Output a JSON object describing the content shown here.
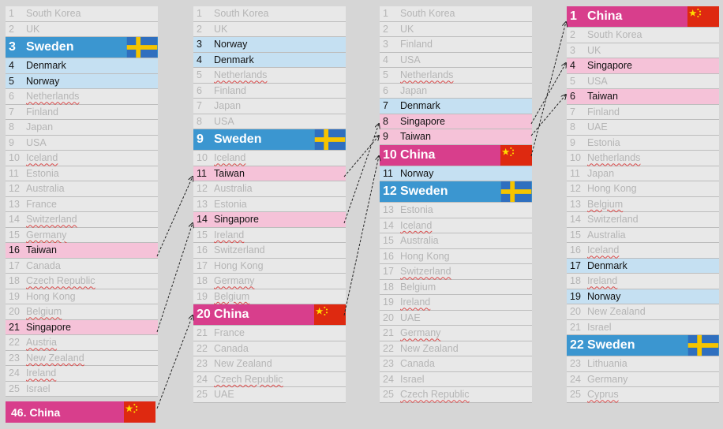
{
  "columns": [
    {
      "rows": [
        {
          "rank": "1",
          "name": "South Korea"
        },
        {
          "rank": "2",
          "name": "UK"
        },
        {
          "rank": "3",
          "name": "Sweden",
          "style": "sweden"
        },
        {
          "rank": "4",
          "name": "Denmark",
          "style": "blue"
        },
        {
          "rank": "5",
          "name": "Norway",
          "style": "blue"
        },
        {
          "rank": "6",
          "name": "Netherlands",
          "ul": true
        },
        {
          "rank": "7",
          "name": "Finland"
        },
        {
          "rank": "8",
          "name": "Japan"
        },
        {
          "rank": "9",
          "name": "USA"
        },
        {
          "rank": "10",
          "name": "Iceland",
          "ul": true
        },
        {
          "rank": "11",
          "name": "Estonia"
        },
        {
          "rank": "12",
          "name": "Australia"
        },
        {
          "rank": "13",
          "name": "France"
        },
        {
          "rank": "14",
          "name": "Switzerland",
          "ul": true
        },
        {
          "rank": "15",
          "name": "Germany",
          "ul": true
        },
        {
          "rank": "16",
          "name": "Taiwan",
          "style": "pink"
        },
        {
          "rank": "17",
          "name": "Canada"
        },
        {
          "rank": "18",
          "name": "Czech Republic",
          "ul": true
        },
        {
          "rank": "19",
          "name": "Hong Kong"
        },
        {
          "rank": "20",
          "name": "Belgium",
          "ul": true
        },
        {
          "rank": "21",
          "name": "Singapore",
          "style": "pink"
        },
        {
          "rank": "22",
          "name": "Austria",
          "ul": true
        },
        {
          "rank": "23",
          "name": "New Zealand",
          "ul": true
        },
        {
          "rank": "24",
          "name": "Ireland",
          "ul": true
        },
        {
          "rank": "25",
          "name": "Israel"
        }
      ]
    },
    {
      "rows": [
        {
          "rank": "1",
          "name": "South Korea"
        },
        {
          "rank": "2",
          "name": "UK"
        },
        {
          "rank": "3",
          "name": "Norway",
          "style": "blue"
        },
        {
          "rank": "4",
          "name": "Denmark",
          "style": "blue"
        },
        {
          "rank": "5",
          "name": "Netherlands",
          "ul": true
        },
        {
          "rank": "6",
          "name": "Finland"
        },
        {
          "rank": "7",
          "name": "Japan"
        },
        {
          "rank": "8",
          "name": "USA"
        },
        {
          "rank": "9",
          "name": "Sweden",
          "style": "sweden"
        },
        {
          "rank": "10",
          "name": "Iceland",
          "ul": true
        },
        {
          "rank": "11",
          "name": "Taiwan",
          "style": "pink"
        },
        {
          "rank": "12",
          "name": "Australia"
        },
        {
          "rank": "13",
          "name": "Estonia"
        },
        {
          "rank": "14",
          "name": "Singapore",
          "style": "pink"
        },
        {
          "rank": "15",
          "name": "Ireland",
          "ul": true
        },
        {
          "rank": "16",
          "name": "Switzerland"
        },
        {
          "rank": "17",
          "name": "Hong Kong"
        },
        {
          "rank": "18",
          "name": "Germany",
          "ul": true
        },
        {
          "rank": "19",
          "name": "Belgium",
          "ul": true
        },
        {
          "rank": "20",
          "name": "China",
          "style": "china"
        },
        {
          "rank": "21",
          "name": "France"
        },
        {
          "rank": "22",
          "name": "Canada"
        },
        {
          "rank": "23",
          "name": "New Zealand"
        },
        {
          "rank": "24",
          "name": "Czech Republic",
          "ul": true
        },
        {
          "rank": "25",
          "name": "UAE"
        }
      ]
    },
    {
      "rows": [
        {
          "rank": "1",
          "name": "South Korea"
        },
        {
          "rank": "2",
          "name": "UK"
        },
        {
          "rank": "3",
          "name": "Finland"
        },
        {
          "rank": "4",
          "name": "USA"
        },
        {
          "rank": "5",
          "name": "Netherlands",
          "ul": true
        },
        {
          "rank": "6",
          "name": "Japan"
        },
        {
          "rank": "7",
          "name": "Denmark",
          "style": "blue"
        },
        {
          "rank": "8",
          "name": "Singapore",
          "style": "pink"
        },
        {
          "rank": "9",
          "name": "Taiwan",
          "style": "pink"
        },
        {
          "rank": "10",
          "name": "China",
          "style": "china"
        },
        {
          "rank": "11",
          "name": "Norway",
          "style": "blue"
        },
        {
          "rank": "12",
          "name": "Sweden",
          "style": "sweden"
        },
        {
          "rank": "13",
          "name": "Estonia"
        },
        {
          "rank": "14",
          "name": "Iceland",
          "ul": true
        },
        {
          "rank": "15",
          "name": "Australia"
        },
        {
          "rank": "16",
          "name": "Hong Kong"
        },
        {
          "rank": "17",
          "name": "Switzerland",
          "ul": true
        },
        {
          "rank": "18",
          "name": "Belgium"
        },
        {
          "rank": "19",
          "name": "Ireland",
          "ul": true
        },
        {
          "rank": "20",
          "name": "UAE"
        },
        {
          "rank": "21",
          "name": "Germany",
          "ul": true
        },
        {
          "rank": "22",
          "name": "New Zealand"
        },
        {
          "rank": "23",
          "name": "Canada"
        },
        {
          "rank": "24",
          "name": "Israel"
        },
        {
          "rank": "25",
          "name": "Czech Republic",
          "ul": true
        }
      ]
    },
    {
      "rows": [
        {
          "rank": "1",
          "name": "China",
          "style": "china"
        },
        {
          "rank": "2",
          "name": "South Korea"
        },
        {
          "rank": "3",
          "name": "UK"
        },
        {
          "rank": "4",
          "name": "Singapore",
          "style": "pink"
        },
        {
          "rank": "5",
          "name": "USA"
        },
        {
          "rank": "6",
          "name": "Taiwan",
          "style": "pink"
        },
        {
          "rank": "7",
          "name": "Finland"
        },
        {
          "rank": "8",
          "name": "UAE"
        },
        {
          "rank": "9",
          "name": "Estonia"
        },
        {
          "rank": "10",
          "name": "Netherlands",
          "ul": true
        },
        {
          "rank": "11",
          "name": "Japan"
        },
        {
          "rank": "12",
          "name": "Hong Kong"
        },
        {
          "rank": "13",
          "name": "Belgium",
          "ul": true
        },
        {
          "rank": "14",
          "name": "Switzerland"
        },
        {
          "rank": "15",
          "name": "Australia"
        },
        {
          "rank": "16",
          "name": "Iceland",
          "ul": true
        },
        {
          "rank": "17",
          "name": "Denmark",
          "style": "blue"
        },
        {
          "rank": "18",
          "name": "Ireland",
          "ul": true
        },
        {
          "rank": "19",
          "name": "Norway",
          "style": "blue"
        },
        {
          "rank": "20",
          "name": "New Zealand"
        },
        {
          "rank": "21",
          "name": "Israel"
        },
        {
          "rank": "22",
          "name": "Sweden",
          "style": "sweden"
        },
        {
          "rank": "23",
          "name": "Lithuania"
        },
        {
          "rank": "24",
          "name": "Germany"
        },
        {
          "rank": "25",
          "name": "Cyprus",
          "ul": true
        }
      ]
    }
  ],
  "extra": {
    "label": "46. China"
  },
  "colors": {
    "sweden": "#3b96d0",
    "china": "#d83e8c",
    "pink": "#f5c2d8",
    "blue": "#c5e0f2"
  }
}
